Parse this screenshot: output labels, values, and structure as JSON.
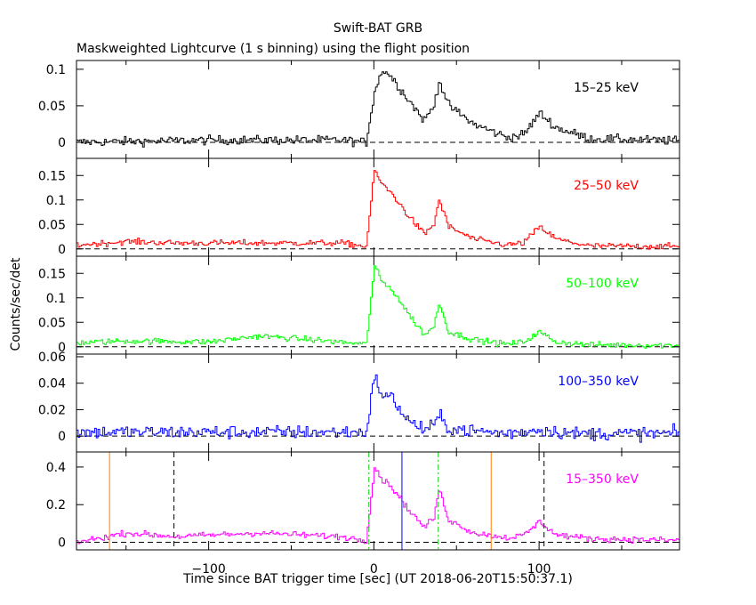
{
  "title": "Swift-BAT GRB",
  "subtitle": "Maskweighted Lightcurve (1 s binning) using the flight position",
  "chart_data": {
    "type": "line",
    "title": "Swift-BAT GRB",
    "subtitle": "Maskweighted Lightcurve (1 s binning) using the flight position",
    "xlabel": "Time since BAT trigger time [sec] (UT 2018-06-20T15:50:37.1)",
    "ylabel": "Counts/sec/det",
    "xlim": [
      -180,
      185
    ],
    "xticks": [
      -100,
      0,
      100
    ],
    "xtick_labels": [
      "−100",
      "0",
      "100"
    ],
    "grid": false,
    "panels": [
      {
        "name": "15–25 keV",
        "color": "#000000",
        "ylim": [
          -0.022,
          0.112
        ],
        "yticks": [
          0,
          0.05,
          0.1
        ],
        "ytick_labels": [
          "0",
          "0.05",
          "0.1"
        ],
        "noise": 0.006,
        "baseline": [
          [
            -180,
            0.0
          ],
          [
            -100,
            0.003
          ],
          [
            -20,
            0.003
          ],
          [
            -5,
            0.0
          ]
        ],
        "series": [
          {
            "name": "15–25 keV",
            "x": [
              -5,
              0,
              5,
              10,
              20,
              30,
              36,
              39,
              45,
              60,
              80,
              90,
              100,
              110,
              130,
              185
            ],
            "values": [
              0.0,
              0.07,
              0.1,
              0.09,
              0.06,
              0.03,
              0.05,
              0.085,
              0.05,
              0.025,
              0.007,
              0.01,
              0.04,
              0.02,
              0.005,
              0.002
            ]
          }
        ]
      },
      {
        "name": "25–50 keV",
        "color": "#ff0000",
        "ylim": [
          -0.015,
          0.185
        ],
        "yticks": [
          0,
          0.05,
          0.1,
          0.15
        ],
        "ytick_labels": [
          "0",
          "0.05",
          "0.1",
          "0.15"
        ],
        "noise": 0.006,
        "baseline": [
          [
            -180,
            0.008
          ],
          [
            -150,
            0.015
          ],
          [
            -120,
            0.012
          ],
          [
            -60,
            0.012
          ],
          [
            -20,
            0.012
          ],
          [
            -5,
            0.005
          ]
        ],
        "series": [
          {
            "name": "25–50 keV",
            "x": [
              -5,
              0,
              5,
              10,
              20,
              30,
              36,
              39,
              45,
              60,
              80,
              90,
              100,
              110,
              130,
              185
            ],
            "values": [
              0.005,
              0.16,
              0.13,
              0.115,
              0.07,
              0.03,
              0.05,
              0.1,
              0.045,
              0.02,
              0.008,
              0.012,
              0.045,
              0.02,
              0.006,
              0.005
            ]
          }
        ]
      },
      {
        "name": "50–100 keV",
        "color": "#00ff00",
        "ylim": [
          -0.015,
          0.185
        ],
        "yticks": [
          0,
          0.05,
          0.1,
          0.15
        ],
        "ytick_labels": [
          "0",
          "0.05",
          "0.1",
          "0.15"
        ],
        "noise": 0.006,
        "baseline": [
          [
            -180,
            0.008
          ],
          [
            -150,
            0.012
          ],
          [
            -100,
            0.01
          ],
          [
            -70,
            0.022
          ],
          [
            -40,
            0.015
          ],
          [
            -5,
            0.005
          ]
        ],
        "series": [
          {
            "name": "50–100 keV",
            "x": [
              -5,
              0,
              5,
              10,
              20,
              30,
              36,
              39,
              45,
              60,
              80,
              90,
              100,
              110,
              130,
              185
            ],
            "values": [
              0.005,
              0.165,
              0.13,
              0.12,
              0.07,
              0.025,
              0.04,
              0.09,
              0.03,
              0.015,
              0.005,
              0.01,
              0.03,
              0.01,
              0.004,
              0.003
            ]
          }
        ]
      },
      {
        "name": "100–350 keV",
        "color": "#0000ff",
        "ylim": [
          -0.012,
          0.062
        ],
        "yticks": [
          0,
          0.02,
          0.04,
          0.06
        ],
        "ytick_labels": [
          "0",
          "0.02",
          "0.04",
          "0.06"
        ],
        "noise": 0.005,
        "baseline": [
          [
            -180,
            0.003
          ],
          [
            -5,
            0.003
          ]
        ],
        "series": [
          {
            "name": "100–350 keV",
            "x": [
              -5,
              0,
              5,
              10,
              20,
              30,
              36,
              39,
              45,
              60,
              80,
              100,
              120,
              185
            ],
            "values": [
              0.003,
              0.045,
              0.03,
              0.03,
              0.012,
              0.005,
              0.008,
              0.015,
              0.006,
              0.004,
              0.002,
              0.005,
              0.002,
              0.002
            ]
          }
        ]
      },
      {
        "name": "15–350 keV",
        "color": "#ff00ff",
        "ylim": [
          -0.04,
          0.48
        ],
        "yticks": [
          0,
          0.2,
          0.4
        ],
        "ytick_labels": [
          "0",
          "0.2",
          "0.4"
        ],
        "noise": 0.016,
        "baseline": [
          [
            -180,
            0.0
          ],
          [
            -150,
            0.05
          ],
          [
            -120,
            0.03
          ],
          [
            -70,
            0.05
          ],
          [
            -20,
            0.03
          ],
          [
            -5,
            0.01
          ]
        ],
        "series": [
          {
            "name": "15–350 keV",
            "x": [
              -5,
              0,
              5,
              10,
              20,
              30,
              36,
              39,
              45,
              60,
              80,
              90,
              100,
              110,
              130,
              185
            ],
            "values": [
              0.01,
              0.4,
              0.33,
              0.3,
              0.18,
              0.08,
              0.13,
              0.28,
              0.12,
              0.05,
              0.025,
              0.035,
              0.11,
              0.04,
              0.02,
              0.01
            ]
          }
        ],
        "markers": [
          {
            "x": -160,
            "color": "#ff8000",
            "style": "solid"
          },
          {
            "x": -121,
            "color": "#000000",
            "style": "dashed"
          },
          {
            "x": -3,
            "color": "#00cc00",
            "style": "dashdot"
          },
          {
            "x": 17,
            "color": "#0000ff",
            "style": "solid"
          },
          {
            "x": 39,
            "color": "#00cc00",
            "style": "dashdot"
          },
          {
            "x": 71,
            "color": "#ff8000",
            "style": "solid"
          },
          {
            "x": 103,
            "color": "#000000",
            "style": "dashed"
          }
        ]
      }
    ]
  }
}
